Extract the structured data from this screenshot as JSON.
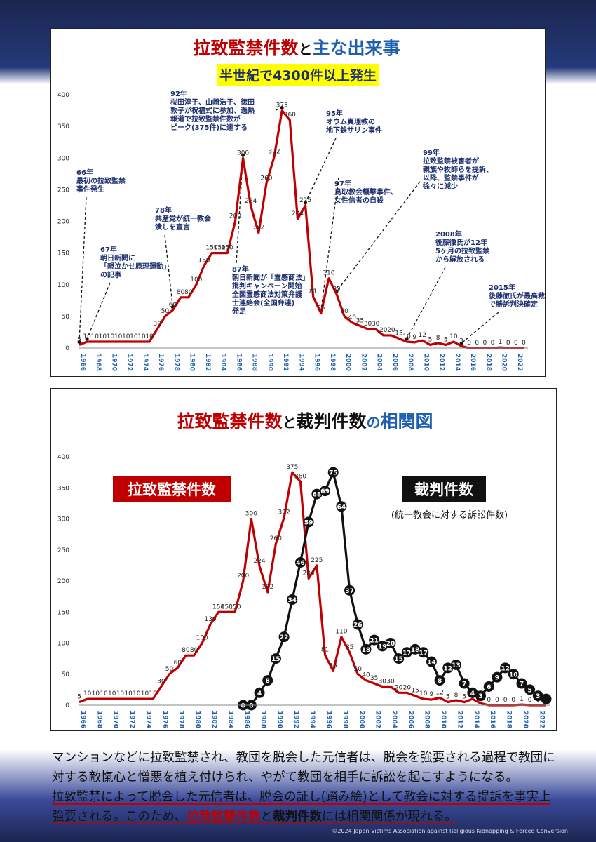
{
  "colors": {
    "kidnap": "#c00000",
    "lawsuit": "#111111",
    "title_blue": "#1f5fb0",
    "subtitle_bg": "#ffff00",
    "axis_blue": "#1f5fb0"
  },
  "chart_data": [
    {
      "type": "line",
      "title_red": "拉致監禁件数",
      "title_mid": "と",
      "title_blue": "主な出来事",
      "subtitle": "半世紀で4300件以上発生",
      "xlabel": "",
      "ylabel": "",
      "ylim": [
        0,
        400
      ],
      "yticks": [
        0,
        50,
        100,
        150,
        200,
        250,
        300,
        350,
        400
      ],
      "xticks": [
        "1966",
        "1968",
        "1970",
        "1972",
        "1974",
        "1976",
        "1978",
        "1980",
        "1982",
        "1984",
        "1986",
        "1988",
        "1990",
        "1992",
        "1994",
        "1996",
        "1998",
        "2000",
        "2002",
        "2004",
        "2006",
        "2008",
        "2010",
        "2012",
        "2014",
        "2016",
        "2018",
        "2020",
        "2022"
      ],
      "series": [
        {
          "name": "拉致監禁件数",
          "x": [
            1966,
            1967,
            1968,
            1969,
            1970,
            1971,
            1972,
            1973,
            1974,
            1975,
            1976,
            1977,
            1978,
            1979,
            1980,
            1981,
            1982,
            1983,
            1984,
            1985,
            1986,
            1987,
            1988,
            1989,
            1990,
            1991,
            1992,
            1993,
            1994,
            1995,
            1996,
            1997,
            1998,
            1999,
            2000,
            2001,
            2002,
            2003,
            2004,
            2005,
            2006,
            2007,
            2008,
            2009,
            2010,
            2011,
            2012,
            2013,
            2014,
            2015,
            2016,
            2017,
            2018,
            2019,
            2020,
            2021,
            2022,
            2023
          ],
          "values": [
            5,
            10,
            10,
            10,
            10,
            10,
            10,
            10,
            10,
            10,
            30,
            50,
            60,
            80,
            80,
            100,
            130,
            150,
            150,
            150,
            200,
            300,
            224,
            182,
            260,
            302,
            375,
            360,
            204,
            225,
            81,
            55,
            110,
            85,
            50,
            40,
            35,
            30,
            30,
            20,
            20,
            15,
            10,
            9,
            12,
            5,
            8,
            5,
            10,
            3,
            0,
            0,
            0,
            0,
            1,
            0,
            0,
            0
          ]
        }
      ],
      "data_labels": [
        {
          "x": 1966,
          "t": "5"
        },
        {
          "x": 1967,
          "t": "10"
        },
        {
          "x": 1968,
          "t": "10"
        },
        {
          "x": 1969,
          "t": "10"
        },
        {
          "x": 1970,
          "t": "10"
        },
        {
          "x": 1971,
          "t": "10"
        },
        {
          "x": 1972,
          "t": "10"
        },
        {
          "x": 1973,
          "t": "10"
        },
        {
          "x": 1974,
          "t": "10"
        },
        {
          "x": 1975,
          "t": "10"
        },
        {
          "x": 1976,
          "t": "30"
        },
        {
          "x": 1977,
          "t": "50"
        },
        {
          "x": 1978,
          "t": "60"
        },
        {
          "x": 1979,
          "t": "80"
        },
        {
          "x": 1980,
          "t": "80"
        },
        {
          "x": 1981,
          "t": "100"
        },
        {
          "x": 1982,
          "t": "130"
        },
        {
          "x": 1983,
          "t": "150"
        },
        {
          "x": 1984,
          "t": "150"
        },
        {
          "x": 1985,
          "t": "150"
        },
        {
          "x": 1986,
          "t": "200"
        },
        {
          "x": 1987,
          "t": "300"
        },
        {
          "x": 1988,
          "t": "224"
        },
        {
          "x": 1989,
          "t": "182"
        },
        {
          "x": 1990,
          "t": "260"
        },
        {
          "x": 1991,
          "t": "302"
        },
        {
          "x": 1992,
          "t": "375"
        },
        {
          "x": 1993,
          "t": "360"
        },
        {
          "x": 1994,
          "t": "204"
        },
        {
          "x": 1995,
          "t": "225"
        },
        {
          "x": 1996,
          "t": "81"
        },
        {
          "x": 1997,
          "t": "55"
        },
        {
          "x": 1998,
          "t": "110"
        },
        {
          "x": 1999,
          "t": "85"
        },
        {
          "x": 2000,
          "t": "50"
        },
        {
          "x": 2001,
          "t": "40"
        },
        {
          "x": 2002,
          "t": "35"
        },
        {
          "x": 2003,
          "t": "30"
        },
        {
          "x": 2004,
          "t": "30"
        },
        {
          "x": 2005,
          "t": "20"
        },
        {
          "x": 2006,
          "t": "20"
        },
        {
          "x": 2007,
          "t": "15"
        },
        {
          "x": 2008,
          "t": "10"
        },
        {
          "x": 2009,
          "t": "9"
        },
        {
          "x": 2010,
          "t": "12"
        },
        {
          "x": 2011,
          "t": "5"
        },
        {
          "x": 2012,
          "t": "8"
        },
        {
          "x": 2013,
          "t": "5"
        },
        {
          "x": 2014,
          "t": "10"
        },
        {
          "x": 2015,
          "t": "3"
        },
        {
          "x": 2016,
          "t": "0"
        },
        {
          "x": 2017,
          "t": "0"
        },
        {
          "x": 2018,
          "t": "0"
        },
        {
          "x": 2019,
          "t": "0"
        },
        {
          "x": 2020,
          "t": "1"
        },
        {
          "x": 2021,
          "t": "0"
        },
        {
          "x": 2022,
          "t": "0"
        },
        {
          "x": 2023,
          "t": "0"
        }
      ],
      "annotations": [
        {
          "year": 1966,
          "lines": [
            "66年",
            "最初の拉致監禁",
            "事件発生"
          ],
          "target": [
            1966,
            5
          ]
        },
        {
          "year": 1967,
          "lines": [
            "67年",
            "朝日新聞に",
            "「親泣かせ原理運動」",
            "の記事"
          ],
          "target": [
            1967,
            10
          ]
        },
        {
          "year": 1978,
          "lines": [
            "78年",
            "共産党が統一教会",
            "潰しを宣言"
          ],
          "target": [
            1978,
            60
          ]
        },
        {
          "year": 1987,
          "lines": [
            "87年",
            "朝日新聞が「霊感商法」",
            "批判キャンペーン開始",
            "全国霊感商法対策弁護",
            "士連絡会(全国弁連)",
            "発足"
          ],
          "target": [
            1987,
            300
          ]
        },
        {
          "year": 1992,
          "lines": [
            "92年",
            "桜田淳子、山崎浩子、徳田",
            "敦子が祝福式に参加、過熱",
            "報道で拉致監禁件数が",
            "ピーク(375件)に達する"
          ],
          "target": [
            1992,
            375
          ]
        },
        {
          "year": 1995,
          "lines": [
            "95年",
            "オウム真理教の",
            "地下鉄サリン事件"
          ],
          "target": [
            1995,
            225
          ]
        },
        {
          "year": 1997,
          "lines": [
            "97年",
            "鳥取教会襲撃事件、",
            "女性信者の自殺"
          ],
          "target": [
            1997,
            55
          ]
        },
        {
          "year": 1999,
          "lines": [
            "99年",
            "拉致監禁被害者が",
            "親族や牧師らを提訴、",
            "以降、監禁事件が",
            "徐々に減少"
          ],
          "target": [
            1999,
            85
          ]
        },
        {
          "year": 2008,
          "lines": [
            "2008年",
            "後藤徹氏が12年",
            "5ヶ月の拉致監禁",
            "から解放される"
          ],
          "target": [
            2008,
            10
          ]
        },
        {
          "year": 2015,
          "lines": [
            "2015年",
            "後藤徹氏が最高裁",
            "で勝訴判決確定"
          ],
          "target": [
            2015,
            3
          ]
        }
      ]
    },
    {
      "type": "line",
      "title_red": "拉致監禁件数",
      "title_mid": "と",
      "title_black": "裁判件数",
      "title_mid2": "の",
      "title_blue": "相関図",
      "legend_kidnap": "拉致監禁件数",
      "legend_lawsuit": "裁判件数",
      "legend_lawsuit_note": "(統一教会に対する訴訟件数)",
      "ylim": [
        0,
        400
      ],
      "yticks": [
        0,
        50,
        100,
        150,
        200,
        250,
        300,
        350,
        400
      ],
      "xticks": [
        "1966",
        "1968",
        "1970",
        "1972",
        "1974",
        "1976",
        "1978",
        "1980",
        "1982",
        "1984",
        "1986",
        "1988",
        "1990",
        "1992",
        "1994",
        "1996",
        "1998",
        "2000",
        "2002",
        "2004",
        "2006",
        "2008",
        "2010",
        "2012",
        "2014",
        "2016",
        "2018",
        "2020",
        "2022"
      ],
      "series": [
        {
          "name": "拉致監禁件数",
          "x": [
            1966,
            1967,
            1968,
            1969,
            1970,
            1971,
            1972,
            1973,
            1974,
            1975,
            1976,
            1977,
            1978,
            1979,
            1980,
            1981,
            1982,
            1983,
            1984,
            1985,
            1986,
            1987,
            1988,
            1989,
            1990,
            1991,
            1992,
            1993,
            1994,
            1995,
            1996,
            1997,
            1998,
            1999,
            2000,
            2001,
            2002,
            2003,
            2004,
            2005,
            2006,
            2007,
            2008,
            2009,
            2010,
            2011,
            2012,
            2013,
            2014,
            2015,
            2016,
            2017,
            2018,
            2019,
            2020,
            2021,
            2022,
            2023
          ],
          "values": [
            5,
            10,
            10,
            10,
            10,
            10,
            10,
            10,
            10,
            10,
            30,
            50,
            60,
            80,
            80,
            100,
            130,
            150,
            150,
            150,
            200,
            300,
            224,
            182,
            260,
            302,
            375,
            360,
            204,
            225,
            81,
            55,
            110,
            85,
            50,
            40,
            35,
            30,
            30,
            20,
            20,
            15,
            10,
            9,
            12,
            5,
            8,
            5,
            10,
            3,
            0,
            0,
            0,
            0,
            1,
            0,
            0,
            0
          ]
        },
        {
          "name": "裁判件数",
          "x": [
            1986,
            1987,
            1988,
            1989,
            1990,
            1991,
            1992,
            1993,
            1994,
            1995,
            1996,
            1997,
            1998,
            1999,
            2000,
            2001,
            2002,
            2003,
            2004,
            2005,
            2006,
            2007,
            2008,
            2009,
            2010,
            2011,
            2012,
            2013,
            2014,
            2015,
            2016,
            2017,
            2018,
            2019,
            2020,
            2021,
            2022,
            2023
          ],
          "values": [
            0,
            0,
            4,
            8,
            15,
            22,
            34,
            46,
            59,
            68,
            69,
            75,
            64,
            37,
            26,
            18,
            21,
            19,
            20,
            15,
            17,
            18,
            17,
            14,
            8,
            12,
            13,
            7,
            4,
            3,
            6,
            9,
            12,
            10,
            7,
            5,
            3,
            2
          ],
          "labels": [
            "0",
            "0",
            "4",
            "8",
            "15",
            "22",
            "34",
            "46",
            "59",
            "68",
            "69",
            "75",
            "64",
            "37",
            "26",
            "18",
            "21",
            "19",
            "20",
            "15",
            "17",
            "18",
            "17",
            "14",
            "8",
            "12",
            "13",
            "7",
            "4",
            "3",
            "6",
            "9",
            "12",
            "10",
            "7",
            "5",
            "3",
            ""
          ]
        }
      ]
    }
  ],
  "caption": {
    "p1": "マンションなどに拉致監禁され、教団を脱会した元信者は、脱会を強要される過程で教団に対する敵愾心と憎悪を植え付けられ、やがて教団を相手に訴訟を起こすようになる。",
    "p2a": "拉致監禁によって脱会した元信者は、脱会の証し(踏み絵)として教会に対する提訴を事実上強要される。このため、",
    "p2b": "拉致監禁件数",
    "p2c": "と",
    "p2d": "裁判件数",
    "p2e": "には相関関係が現れる。"
  },
  "credit": "©2024 Japan Victims Association against Religious Kidnapping & Forced Conversion"
}
